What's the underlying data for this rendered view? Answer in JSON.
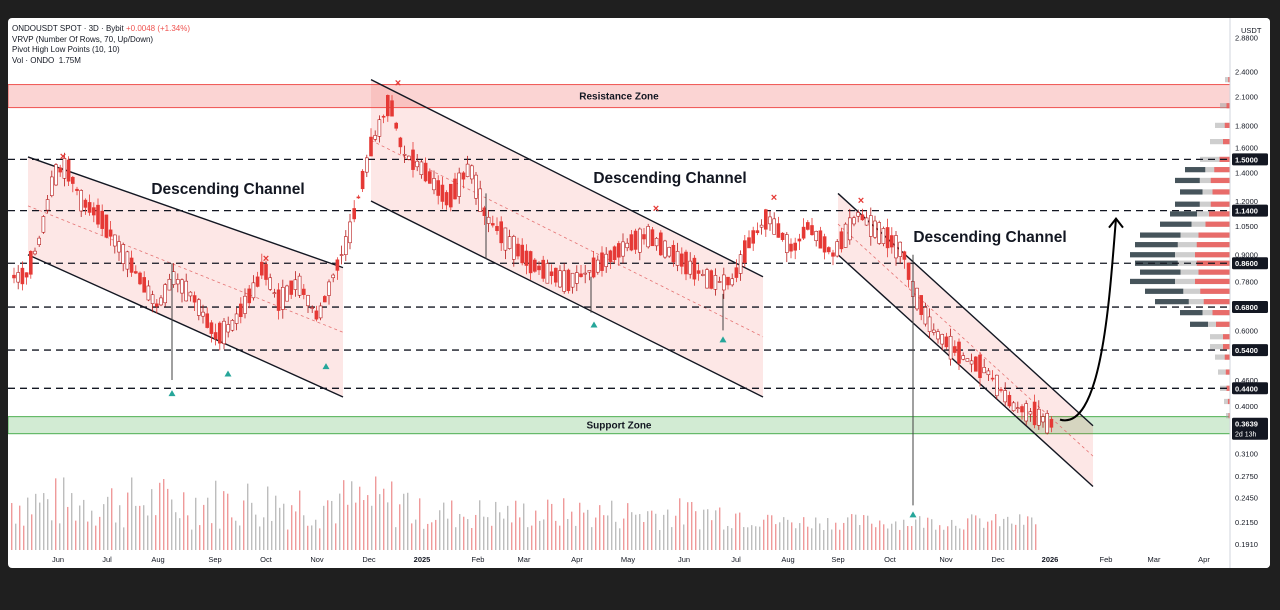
{
  "legend": {
    "symbol": "ONDOUSDT SPOT · 3D · Bybit",
    "change": "+0.0048 (+1.34%)",
    "indicator_vrvp": "VRVP (Number Of Rows, 70, Up/Down)",
    "indicator_pivot": "Pivot High Low Points (10, 10)",
    "volume_label": "Vol · ONDO",
    "volume_value": "1.75M"
  },
  "chart_data": {
    "type": "candlestick",
    "symbol": "ONDOUSDT",
    "exchange": "Bybit",
    "timeframe": "3D",
    "currency": "USDT",
    "y_scale": "log",
    "ylim": [
      0.185,
      3.2
    ],
    "y_ticks": [
      "2.8800",
      "2.4000",
      "2.1000",
      "1.8000",
      "1.6000",
      "1.4000",
      "1.2000",
      "1.0500",
      "0.9000",
      "0.7800",
      "0.6000",
      "0.4600",
      "0.4000",
      "0.3100",
      "0.2750",
      "0.2450",
      "0.2150",
      "0.1910"
    ],
    "x_ticks": [
      "Jun",
      "Jul",
      "Aug",
      "Sep",
      "Oct",
      "Nov",
      "Dec",
      "2025",
      "Feb",
      "Mar",
      "Apr",
      "May",
      "Jun",
      "Jul",
      "Aug",
      "Sep",
      "Oct",
      "Nov",
      "Dec",
      "2026",
      "Feb",
      "Mar",
      "Apr"
    ],
    "price_path": [
      [
        "Jun",
        0.8
      ],
      [
        "Jun",
        0.98
      ],
      [
        "Jun",
        1.38
      ],
      [
        "Jun",
        1.45
      ],
      [
        "Jul",
        1.2
      ],
      [
        "Jul",
        1.1
      ],
      [
        "Jul",
        0.95
      ],
      [
        "Aug",
        0.68
      ],
      [
        "Aug",
        0.8
      ],
      [
        "Aug",
        0.72
      ],
      [
        "Sep",
        0.58
      ],
      [
        "Sep",
        0.62
      ],
      [
        "Sep",
        0.78
      ],
      [
        "Oct",
        0.85
      ],
      [
        "Oct",
        0.7
      ],
      [
        "Oct",
        0.78
      ],
      [
        "Nov",
        0.64
      ],
      [
        "Nov",
        0.8
      ],
      [
        "Nov",
        0.98
      ],
      [
        "Dec",
        1.6
      ],
      [
        "Dec",
        2.05
      ],
      [
        "Dec",
        1.55
      ],
      [
        "2025",
        1.45
      ],
      [
        "2025",
        1.2
      ],
      [
        "Feb",
        1.45
      ],
      [
        "Feb",
        1.1
      ],
      [
        "Mar",
        0.92
      ],
      [
        "Mar",
        0.85
      ],
      [
        "Apr",
        0.78
      ],
      [
        "Apr",
        0.82
      ],
      [
        "May",
        0.95
      ],
      [
        "May",
        1.0
      ],
      [
        "Jun",
        0.85
      ],
      [
        "Jun",
        0.78
      ],
      [
        "Jul",
        0.78
      ],
      [
        "Jul",
        0.95
      ],
      [
        "Jul",
        1.1
      ],
      [
        "Aug",
        0.92
      ],
      [
        "Aug",
        1.05
      ],
      [
        "Sep",
        0.9
      ],
      [
        "Sep",
        1.12
      ],
      [
        "Sep",
        0.98
      ],
      [
        "Oct",
        0.92
      ],
      [
        "Oct",
        0.75
      ],
      [
        "Nov",
        0.6
      ],
      [
        "Nov",
        0.52
      ],
      [
        "Dec",
        0.48
      ],
      [
        "Dec",
        0.4
      ],
      [
        "Dec",
        0.38
      ],
      [
        "2026",
        0.3639
      ]
    ],
    "horizontal_levels": [
      1.5,
      1.14,
      0.86,
      0.68,
      0.54,
      0.44
    ],
    "level_labels": [
      "1.5000",
      "1.1400",
      "0.8600",
      "0.6800",
      "0.5400",
      "0.4400"
    ],
    "current_price": "0.3639",
    "countdown": "2d 13h",
    "zones": [
      {
        "label": "Resistance Zone",
        "from": 1.98,
        "to": 2.24,
        "color": "#ef5350"
      },
      {
        "label": "Support Zone",
        "from": 0.345,
        "to": 0.378,
        "color": "#4caf50"
      }
    ],
    "channels": [
      {
        "label": "Descending Channel",
        "start": "May",
        "end": "Nov",
        "top_start": 1.52,
        "top_end": 0.84,
        "bottom_start": 0.9,
        "bottom_end": 0.42
      },
      {
        "label": "Descending Channel",
        "start": "Nov",
        "end": "Jul",
        "top_start": 2.3,
        "top_end": 0.8,
        "bottom_start": 1.2,
        "bottom_end": 0.42
      },
      {
        "label": "Descending Channel",
        "start": "Sep",
        "end": "Feb",
        "top_start": 1.25,
        "top_end": 0.36,
        "bottom_start": 0.9,
        "bottom_end": 0.26
      }
    ],
    "projection_target": 1.14,
    "pivot_highs": [
      [
        "Jun",
        1.52
      ],
      [
        "Oct",
        0.88
      ],
      [
        "Dec",
        2.25
      ],
      [
        "May",
        1.15
      ],
      [
        "Aug",
        1.22
      ],
      [
        "Sep",
        1.2
      ]
    ],
    "pivot_lows": [
      [
        "Aug",
        0.45
      ],
      [
        "Sep",
        0.5
      ],
      [
        "Nov",
        0.52
      ],
      [
        "Apr",
        0.65
      ],
      [
        "Jun",
        0.6
      ],
      [
        "Oct",
        0.235
      ]
    ],
    "colors": {
      "up": "#26a69a",
      "down": "#ef5350",
      "candle_down": "#e53935",
      "candle_up": "#b71c1c",
      "pivot_low": "#26a69a",
      "pivot_high": "#e53935"
    }
  }
}
